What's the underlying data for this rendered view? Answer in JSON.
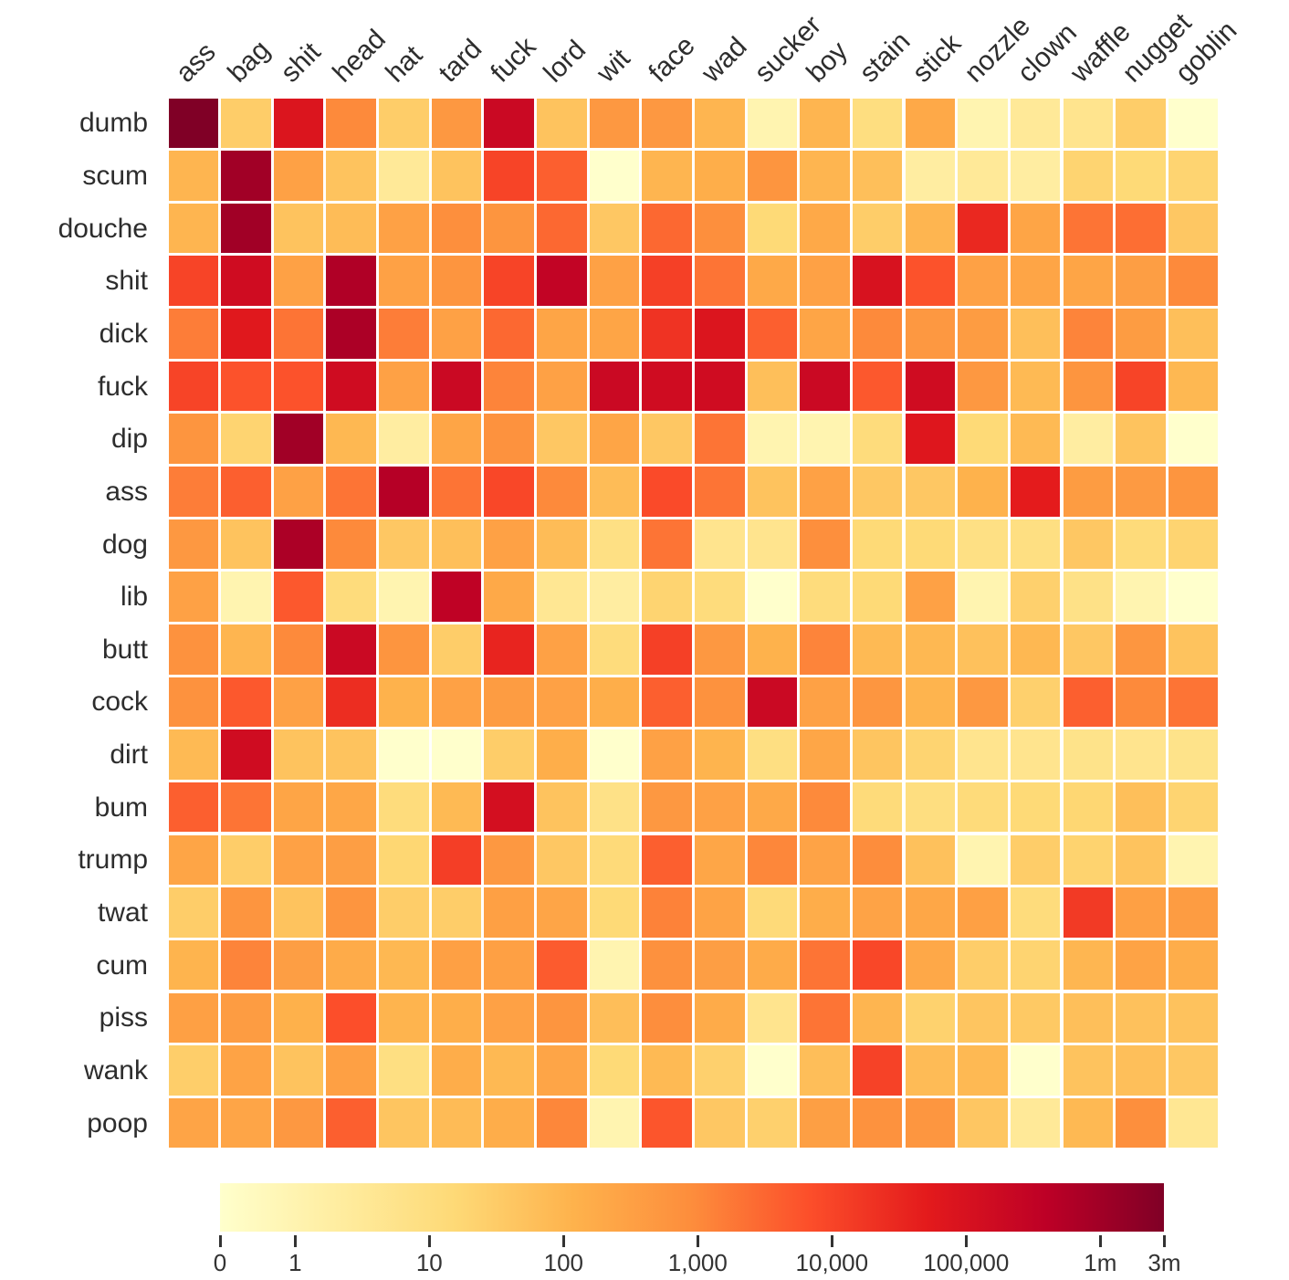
{
  "chart_data": {
    "type": "heatmap",
    "title": "",
    "rows": [
      "dumb",
      "scum",
      "douche",
      "shit",
      "dick",
      "fuck",
      "dip",
      "ass",
      "dog",
      "lib",
      "butt",
      "cock",
      "dirt",
      "bum",
      "trump",
      "twat",
      "cum",
      "piss",
      "wank",
      "poop"
    ],
    "columns": [
      "ass",
      "bag",
      "shit",
      "head",
      "hat",
      "tard",
      "fuck",
      "lord",
      "wit",
      "face",
      "wad",
      "sucker",
      "boy",
      "stain",
      "stick",
      "nozzle",
      "clown",
      "waffle",
      "nugget",
      "goblin"
    ],
    "values": [
      [
        3000000,
        30,
        80000,
        1000,
        30,
        500,
        200000,
        50,
        500,
        500,
        100,
        1,
        100,
        10,
        200,
        1,
        3,
        5,
        30,
        0
      ],
      [
        100,
        1000000,
        300,
        50,
        3,
        50,
        10000,
        4000,
        0,
        100,
        150,
        600,
        100,
        60,
        2,
        3,
        2,
        20,
        15,
        20
      ],
      [
        100,
        1000000,
        50,
        70,
        300,
        800,
        600,
        3000,
        40,
        3000,
        800,
        15,
        200,
        30,
        100,
        30000,
        250,
        2000,
        2500,
        40
      ],
      [
        10000,
        150000,
        300,
        600000,
        300,
        600,
        10000,
        300000,
        300,
        12000,
        2000,
        200,
        300,
        100000,
        6000,
        300,
        250,
        250,
        350,
        1000
      ],
      [
        1500,
        60000,
        2000,
        700000,
        1500,
        300,
        3000,
        250,
        250,
        20000,
        80000,
        4000,
        250,
        1000,
        500,
        400,
        60,
        1200,
        400,
        60
      ],
      [
        10000,
        6000,
        6000,
        150000,
        300,
        200000,
        1200,
        300,
        200000,
        150000,
        150000,
        60,
        200000,
        5000,
        150000,
        500,
        80,
        600,
        10000,
        90
      ],
      [
        600,
        20,
        1000000,
        90,
        2,
        250,
        700,
        40,
        250,
        40,
        2000,
        1,
        1,
        12,
        70000,
        15,
        80,
        2,
        50,
        0
      ],
      [
        1500,
        4000,
        300,
        2000,
        500000,
        2000,
        9000,
        1000,
        70,
        8000,
        2000,
        50,
        300,
        40,
        40,
        120,
        50000,
        400,
        450,
        600
      ],
      [
        500,
        50,
        700000,
        1000,
        40,
        60,
        300,
        70,
        8,
        2000,
        5,
        5,
        800,
        15,
        15,
        8,
        9,
        40,
        13,
        20
      ],
      [
        300,
        1,
        5000,
        12,
        1,
        350000,
        200,
        4,
        2,
        20,
        12,
        0,
        12,
        15,
        300,
        1,
        25,
        7,
        1,
        0
      ],
      [
        700,
        100,
        1000,
        200000,
        600,
        30,
        35000,
        300,
        12,
        12000,
        500,
        120,
        1200,
        80,
        90,
        55,
        90,
        40,
        550,
        50
      ],
      [
        700,
        5000,
        300,
        25000,
        120,
        300,
        400,
        300,
        150,
        4000,
        700,
        200000,
        300,
        550,
        110,
        500,
        25,
        4000,
        1000,
        2000
      ],
      [
        80,
        150000,
        50,
        50,
        0,
        0,
        30,
        150,
        0,
        300,
        110,
        9,
        230,
        45,
        20,
        5,
        5,
        6,
        5,
        6
      ],
      [
        4000,
        2000,
        250,
        220,
        12,
        80,
        120000,
        50,
        7,
        500,
        300,
        200,
        1000,
        13,
        10,
        13,
        15,
        18,
        60,
        20
      ],
      [
        250,
        30,
        300,
        350,
        18,
        13000,
        500,
        40,
        14,
        4000,
        230,
        1100,
        270,
        900,
        55,
        1,
        30,
        22,
        50,
        1
      ],
      [
        30,
        600,
        50,
        600,
        30,
        30,
        330,
        240,
        15,
        1300,
        280,
        14,
        160,
        270,
        220,
        330,
        12,
        15000,
        330,
        400
      ],
      [
        110,
        1200,
        350,
        180,
        90,
        320,
        320,
        4500,
        1,
        750,
        350,
        180,
        2000,
        9000,
        210,
        30,
        20,
        95,
        280,
        160
      ],
      [
        330,
        400,
        130,
        7000,
        110,
        150,
        300,
        600,
        65,
        850,
        180,
        5,
        2000,
        100,
        23,
        45,
        37,
        60,
        55,
        52
      ],
      [
        28,
        280,
        50,
        320,
        9,
        160,
        85,
        240,
        15,
        80,
        25,
        0,
        65,
        11000,
        75,
        85,
        0,
        50,
        60,
        40
      ],
      [
        260,
        240,
        500,
        4000,
        45,
        75,
        160,
        1100,
        1,
        5500,
        40,
        25,
        340,
        700,
        550,
        42,
        3,
        85,
        800,
        4
      ]
    ],
    "scale": "log",
    "colorbar": {
      "ticks": [
        {
          "label": "0",
          "value": 0
        },
        {
          "label": "1",
          "value": 1
        },
        {
          "label": "10",
          "value": 10
        },
        {
          "label": "100",
          "value": 100
        },
        {
          "label": "1,000",
          "value": 1000
        },
        {
          "label": "10,000",
          "value": 10000
        },
        {
          "label": "100,000",
          "value": 100000
        },
        {
          "label": "1m",
          "value": 1000000
        },
        {
          "label": "3m",
          "value": 3000000
        }
      ],
      "max": 3000000
    },
    "colormap": {
      "name": "YlOrRd",
      "stops": [
        "#ffffcc",
        "#ffeda0",
        "#fed976",
        "#feb24c",
        "#fd8d3c",
        "#fc4e2a",
        "#e31a1c",
        "#bd0026",
        "#800026"
      ]
    }
  }
}
